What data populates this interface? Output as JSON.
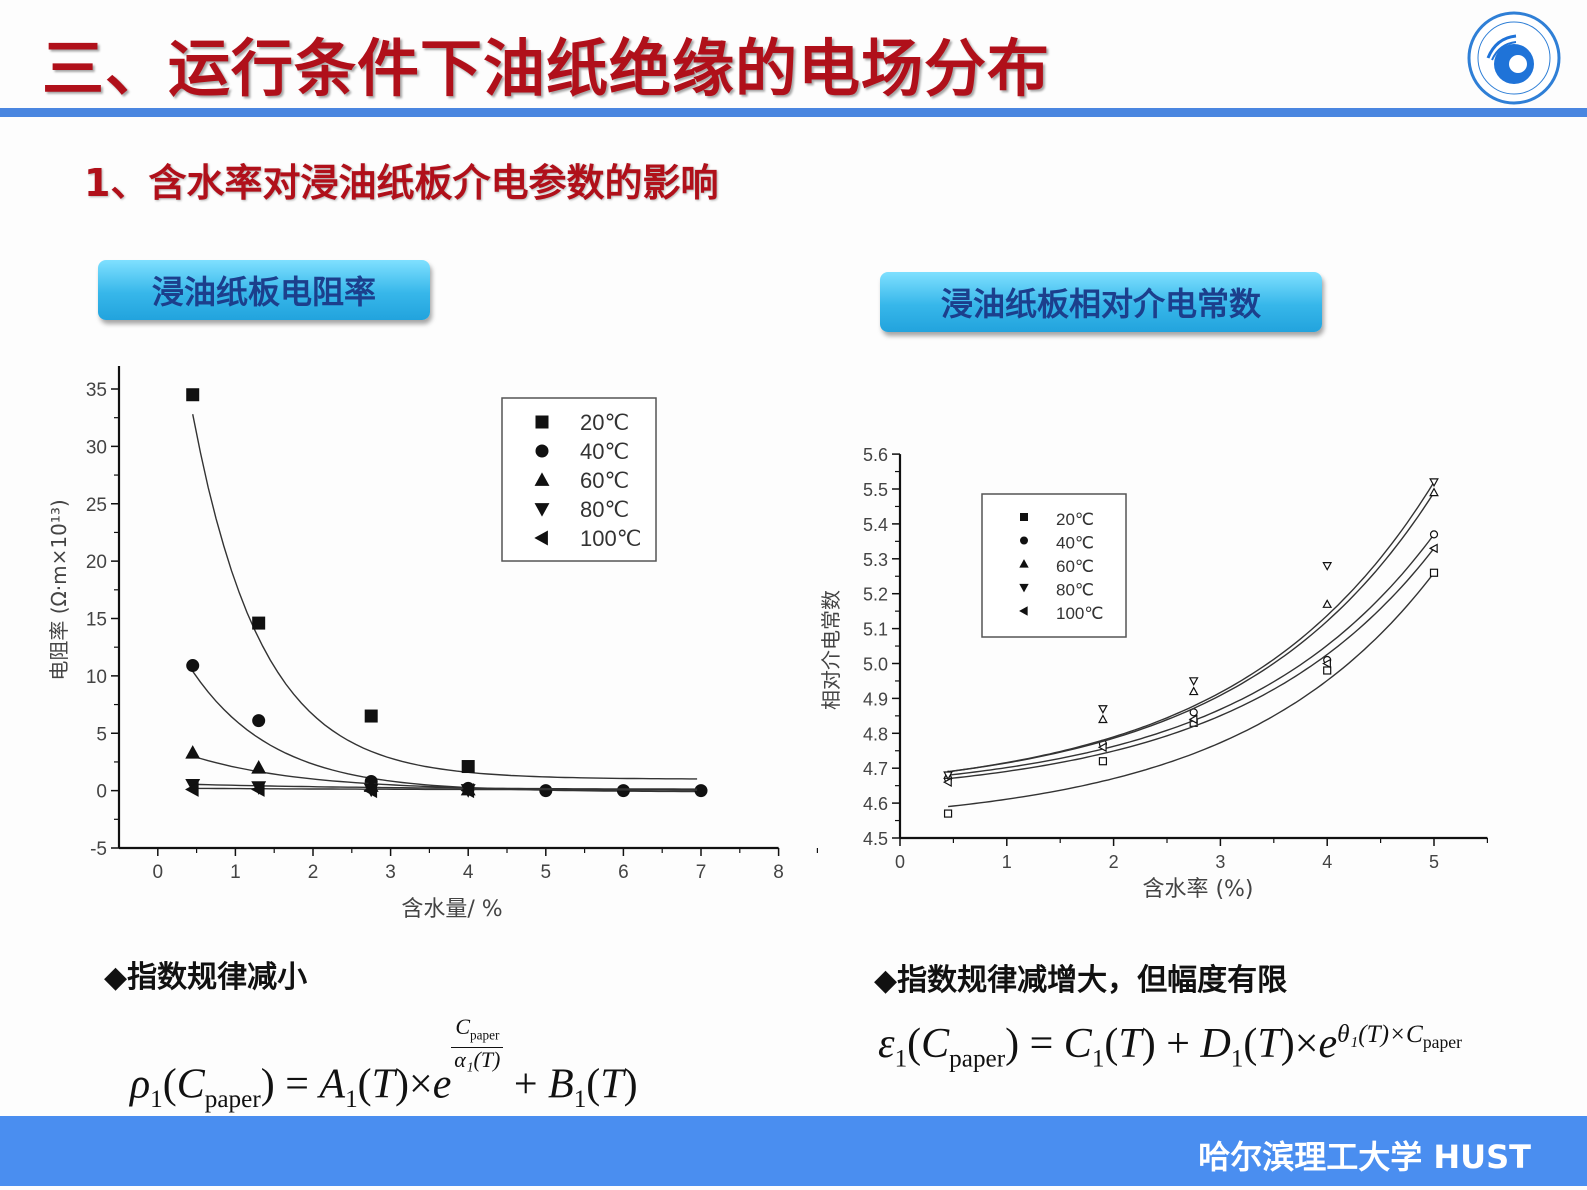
{
  "slide": {
    "title": "三、运行条件下油纸绝缘的电场分布",
    "subtitle": "1、含水率对浸油纸板介电参数的影响",
    "logo": "university-seal-icon",
    "footer": "哈尔滨理工大学  HUST",
    "colors": {
      "title": "#b0101a",
      "rule": "#4a86e0",
      "pill": "#37b7ea",
      "pill_text": "#1c3f8c",
      "footer": "#4a8ef0"
    }
  },
  "left_panel": {
    "pill_label": "浸油纸板电阻率",
    "bullet": "◆指数规律减小",
    "formula": {
      "lhs": "ρ₁(C_paper)",
      "rho": "ρ",
      "sub1": "1",
      "c": "C",
      "paper": "paper",
      "mid": "= A₁(T) × e",
      "A": "A",
      "T": "T",
      "times": "×",
      "e": "e",
      "exp_num": "C",
      "exp_num_sub": "paper",
      "exp_den": "α₁(T)",
      "minus": "-",
      "tail": "+ B₁(T)",
      "B": "B",
      "eq": "=",
      "plus": "+"
    }
  },
  "right_panel": {
    "pill_label": "浸油纸板相对介电常数",
    "bullet": "◆指数规律减增大，但幅度有限",
    "formula": {
      "eps": "ε",
      "sub1": "1",
      "c": "C",
      "paper": "paper",
      "eq": "=",
      "C": "C",
      "T": "T",
      "plus": "+",
      "D": "D",
      "times": "×",
      "e": "e",
      "exp": "θ₁(T)×C",
      "exp_sub": "paper"
    }
  },
  "chart_data": [
    {
      "type": "scatter",
      "title": "浸油纸板电阻率",
      "xlabel": "含水量/ %",
      "ylabel": "电阻率 (Ω·m×10¹³)",
      "xlim": [
        -0.5,
        8
      ],
      "ylim": [
        -5,
        37
      ],
      "xticks": [
        "0",
        "1",
        "2",
        "3",
        "4",
        "5",
        "6",
        "7",
        "8"
      ],
      "yticks": [
        "-5",
        "0",
        "5",
        "10",
        "15",
        "20",
        "25",
        "30",
        "35"
      ],
      "grid": false,
      "legend_position": "upper right",
      "legend": [
        "20℃",
        "40℃",
        "60℃",
        "80℃",
        "100℃"
      ],
      "markers": [
        "filled-square",
        "filled-circle",
        "filled-triangle-up",
        "filled-triangle-down",
        "filled-triangle-left"
      ],
      "fit": "exponential decay",
      "series": [
        {
          "name": "20℃",
          "x": [
            0.45,
            1.3,
            2.75,
            4.0
          ],
          "y": [
            34.5,
            14.6,
            6.5,
            2.1
          ],
          "fit_x": [
            0.45,
            7.0
          ],
          "fit_y_start": 32.8,
          "fit_y_end": 1.0
        },
        {
          "name": "40℃",
          "x": [
            0.45,
            1.3,
            2.75,
            4.0,
            5.0,
            6.0,
            7.0
          ],
          "y": [
            10.9,
            6.1,
            0.8,
            0.2,
            0.0,
            0.0,
            0.0
          ]
        },
        {
          "name": "60℃",
          "x": [
            0.45,
            1.3,
            2.75,
            4.0
          ],
          "y": [
            3.3,
            2.0,
            0.4,
            0.1
          ]
        },
        {
          "name": "80℃",
          "x": [
            0.45,
            1.3,
            2.75,
            4.0
          ],
          "y": [
            0.5,
            0.3,
            0.1,
            0.05
          ]
        },
        {
          "name": "100℃",
          "x": [
            0.45,
            1.3,
            2.75,
            4.0
          ],
          "y": [
            0.1,
            0.1,
            0.0,
            0.0
          ]
        }
      ]
    },
    {
      "type": "scatter",
      "title": "浸油纸板相对介电常数",
      "xlabel": "含水率 (%)",
      "ylabel": "相对介电常数",
      "xlim": [
        0,
        5.5
      ],
      "ylim": [
        4.5,
        5.6
      ],
      "xticks": [
        "0",
        "1",
        "2",
        "3",
        "4",
        "5"
      ],
      "yticks": [
        "4.5",
        "4.6",
        "4.7",
        "4.8",
        "4.9",
        "5.0",
        "5.1",
        "5.2",
        "5.3",
        "5.4",
        "5.5",
        "5.6"
      ],
      "grid": false,
      "legend_position": "upper left",
      "legend": [
        "20℃",
        "40℃",
        "60℃",
        "80℃",
        "100℃"
      ],
      "markers": [
        "square",
        "circle",
        "triangle-up",
        "triangle-down",
        "triangle-left"
      ],
      "fit": "exponential growth",
      "series": [
        {
          "name": "20℃",
          "x": [
            0.45,
            1.9,
            2.75,
            4.0,
            5.0
          ],
          "y": [
            4.57,
            4.72,
            4.83,
            4.98,
            5.26
          ]
        },
        {
          "name": "40℃",
          "x": [
            0.45,
            1.9,
            2.75,
            4.0,
            5.0
          ],
          "y": [
            4.67,
            4.77,
            4.86,
            5.01,
            5.37
          ]
        },
        {
          "name": "60℃",
          "x": [
            0.45,
            1.9,
            2.75,
            4.0,
            5.0
          ],
          "y": [
            4.68,
            4.84,
            4.92,
            5.17,
            5.49
          ]
        },
        {
          "name": "80℃",
          "x": [
            0.45,
            1.9,
            2.75,
            4.0,
            5.0
          ],
          "y": [
            4.68,
            4.87,
            4.95,
            5.28,
            5.52
          ]
        },
        {
          "name": "100℃",
          "x": [
            0.45,
            1.9,
            2.75,
            4.0,
            5.0
          ],
          "y": [
            4.66,
            4.76,
            4.84,
            5.0,
            5.33
          ]
        }
      ]
    }
  ]
}
